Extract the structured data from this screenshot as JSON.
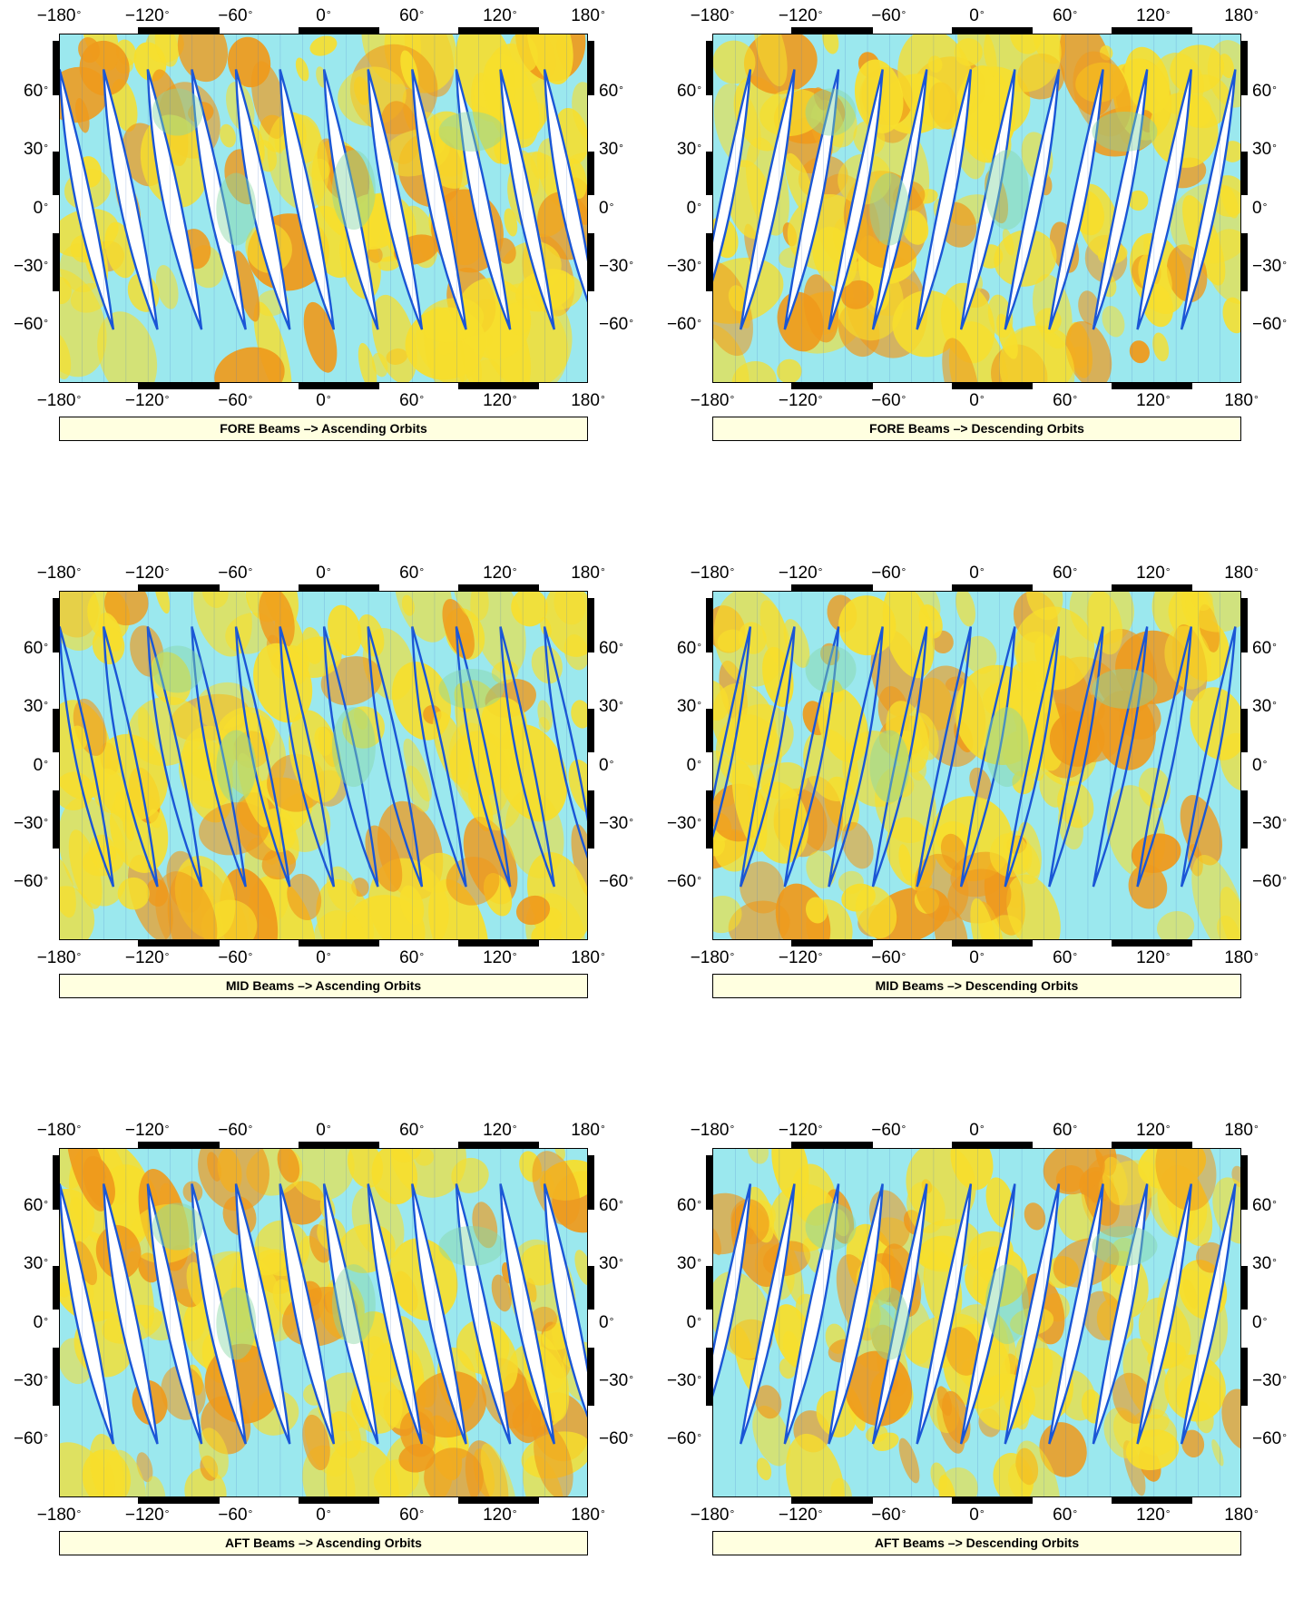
{
  "figure": {
    "lon_ticks": [
      "−180",
      "−120",
      "−60",
      "0",
      "60",
      "120",
      "180"
    ],
    "lon_values": [
      -180,
      -120,
      -60,
      0,
      60,
      120,
      180
    ],
    "lat_ticks": [
      "60",
      "30",
      "0",
      "−30",
      "−60"
    ],
    "lat_values": [
      60,
      30,
      0,
      -30,
      -60
    ],
    "lon_range": [
      -180,
      180
    ],
    "lat_range": [
      -90,
      90
    ],
    "degree_symbol": "°",
    "colors": {
      "ocean_cyan": "#9be8ee",
      "land_yellow": "#f7de2c",
      "land_orange": "#ef9a1c",
      "swath_blue": "#1a56d6",
      "gap_white": "#ffffff",
      "continent_green": "#88d8a4",
      "caption_bg": "#ffffe0"
    },
    "panels": [
      {
        "caption": "FORE Beams –> Ascending Orbits",
        "beam": "FORE",
        "orbit": "ascending"
      },
      {
        "caption": "FORE Beams –> Descending Orbits",
        "beam": "FORE",
        "orbit": "descending"
      },
      {
        "caption": "MID Beams –> Ascending Orbits",
        "beam": "MID",
        "orbit": "ascending"
      },
      {
        "caption": "MID Beams –> Descending Orbits",
        "beam": "MID",
        "orbit": "descending"
      },
      {
        "caption": "AFT Beams –> Ascending Orbits",
        "beam": "AFT",
        "orbit": "ascending"
      },
      {
        "caption": "AFT Beams –> Descending Orbits",
        "beam": "AFT",
        "orbit": "descending"
      }
    ]
  }
}
